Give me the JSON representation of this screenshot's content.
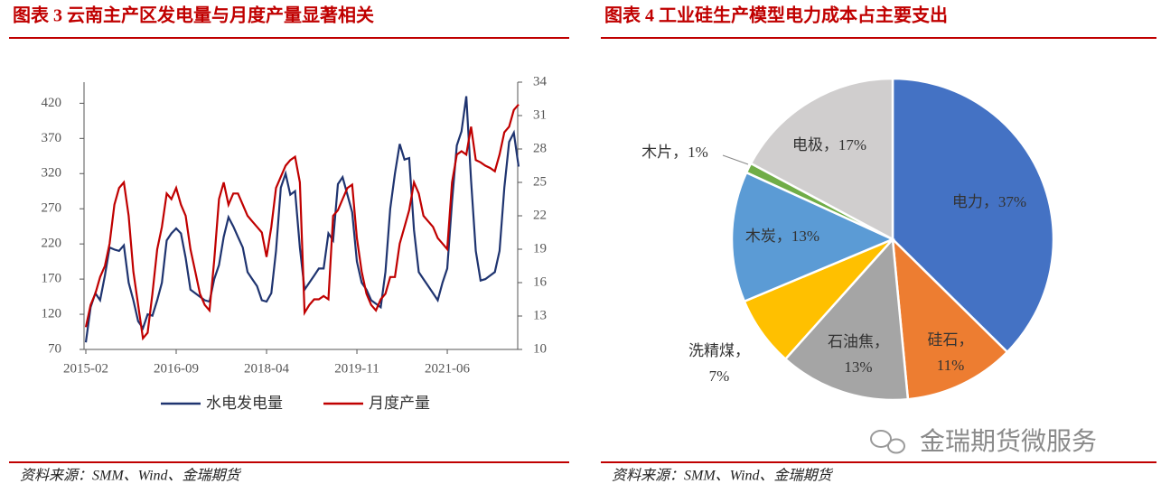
{
  "chart_data": [
    {
      "type": "line",
      "title": "图表 3 云南主产区发电量与月度产量显著相关",
      "source": "资料来源：SMM、Wind、金瑞期货",
      "x": [
        "2015-02",
        "2015-03",
        "2015-04",
        "2015-05",
        "2015-06",
        "2015-07",
        "2015-08",
        "2015-09",
        "2015-10",
        "2015-11",
        "2015-12",
        "2016-01",
        "2016-02",
        "2016-03",
        "2016-04",
        "2016-05",
        "2016-06",
        "2016-07",
        "2016-08",
        "2016-09",
        "2016-10",
        "2016-11",
        "2016-12",
        "2017-01",
        "2017-02",
        "2017-03",
        "2017-04",
        "2017-05",
        "2017-06",
        "2017-07",
        "2017-08",
        "2017-09",
        "2017-10",
        "2017-11",
        "2017-12",
        "2018-01",
        "2018-02",
        "2018-03",
        "2018-04",
        "2018-05",
        "2018-06",
        "2018-07",
        "2018-08",
        "2018-09",
        "2018-10",
        "2018-11",
        "2018-12",
        "2019-01",
        "2019-02",
        "2019-03",
        "2019-04",
        "2019-05",
        "2019-06",
        "2019-07",
        "2019-08",
        "2019-09",
        "2019-10",
        "2019-11",
        "2019-12",
        "2020-01",
        "2020-02",
        "2020-03",
        "2020-04",
        "2020-05",
        "2020-06",
        "2020-07",
        "2020-08",
        "2020-09",
        "2020-10",
        "2020-11",
        "2020-12",
        "2021-01",
        "2021-02",
        "2021-03",
        "2021-04",
        "2021-05",
        "2021-06",
        "2021-07",
        "2021-08",
        "2021-09",
        "2021-10",
        "2021-11",
        "2021-12",
        "2022-01",
        "2022-02",
        "2022-03",
        "2022-04",
        "2022-05",
        "2022-06",
        "2022-07",
        "2022-08",
        "2022-09"
      ],
      "xticks": [
        "2015-02",
        "2016-09",
        "2018-04",
        "2019-11",
        "2021-06"
      ],
      "ylim": [
        70,
        450
      ],
      "yticks": [
        70,
        120,
        170,
        220,
        270,
        320,
        370,
        420
      ],
      "y2lim": [
        10,
        34
      ],
      "y2ticks": [
        10,
        13,
        16,
        19,
        22,
        25,
        28,
        31,
        34
      ],
      "series": [
        {
          "name": "水电发电量",
          "color": "#1f3470",
          "values": [
            80,
            130,
            150,
            140,
            175,
            215,
            212,
            210,
            218,
            165,
            140,
            110,
            100,
            120,
            118,
            140,
            165,
            225,
            235,
            242,
            235,
            200,
            155,
            150,
            145,
            140,
            138,
            170,
            190,
            230,
            258,
            245,
            230,
            215,
            180,
            170,
            160,
            140,
            138,
            150,
            210,
            300,
            320,
            290,
            295,
            215,
            155,
            165,
            175,
            185,
            185,
            235,
            225,
            305,
            315,
            290,
            265,
            195,
            165,
            155,
            140,
            135,
            130,
            180,
            270,
            320,
            362,
            340,
            342,
            240,
            180,
            170,
            160,
            150,
            140,
            165,
            185,
            280,
            360,
            380,
            430,
            310,
            210,
            168,
            170,
            175,
            180,
            210,
            300,
            365,
            378,
            330
          ]
        },
        {
          "name": "月度产量",
          "color": "#c00000",
          "axis": "y2",
          "values": [
            12,
            14,
            15,
            16.5,
            17.5,
            19.5,
            23,
            24.5,
            25,
            22,
            17,
            14,
            11,
            11.5,
            15,
            19,
            21,
            24,
            23.5,
            24.5,
            23,
            22,
            19,
            17,
            15,
            14,
            13.5,
            18,
            23.5,
            25,
            23,
            24,
            24,
            23,
            22,
            21.5,
            21,
            20.5,
            18.3,
            21,
            24.5,
            25.5,
            26.5,
            27,
            27.3,
            25,
            13.3,
            14,
            14.5,
            14.5,
            14.8,
            14.5,
            22,
            22.5,
            23.5,
            24.5,
            24.8,
            20,
            17,
            15,
            14,
            13.5,
            14.5,
            15,
            16.5,
            16.5,
            19.5,
            21,
            22.5,
            25,
            24,
            22,
            21.5,
            21,
            20,
            19.5,
            19,
            25,
            27.5,
            27.8,
            27.5,
            30,
            27,
            26.8,
            26.5,
            26.3,
            26,
            27.5,
            29.5,
            30,
            31.5,
            32
          ]
        }
      ]
    },
    {
      "type": "pie",
      "title": "图表 4  工业硅生产模型电力成本占主要支出",
      "source": "资料来源：SMM、Wind、金瑞期货",
      "values": [
        37,
        11,
        13,
        7,
        13,
        1,
        17
      ],
      "value_labels": [
        "电力，37%",
        "硅石，\n11%",
        "石油焦，\n13%",
        "洗精煤，\n7%",
        "木炭，13%",
        "木片，1%",
        "电极，17%"
      ],
      "colors": [
        "#4472c4",
        "#ed7d31",
        "#a5a5a5",
        "#ffc000",
        "#5b9bd5",
        "#70ad47",
        "#d0cece"
      ]
    }
  ],
  "watermark": "金瑞期货微服务"
}
